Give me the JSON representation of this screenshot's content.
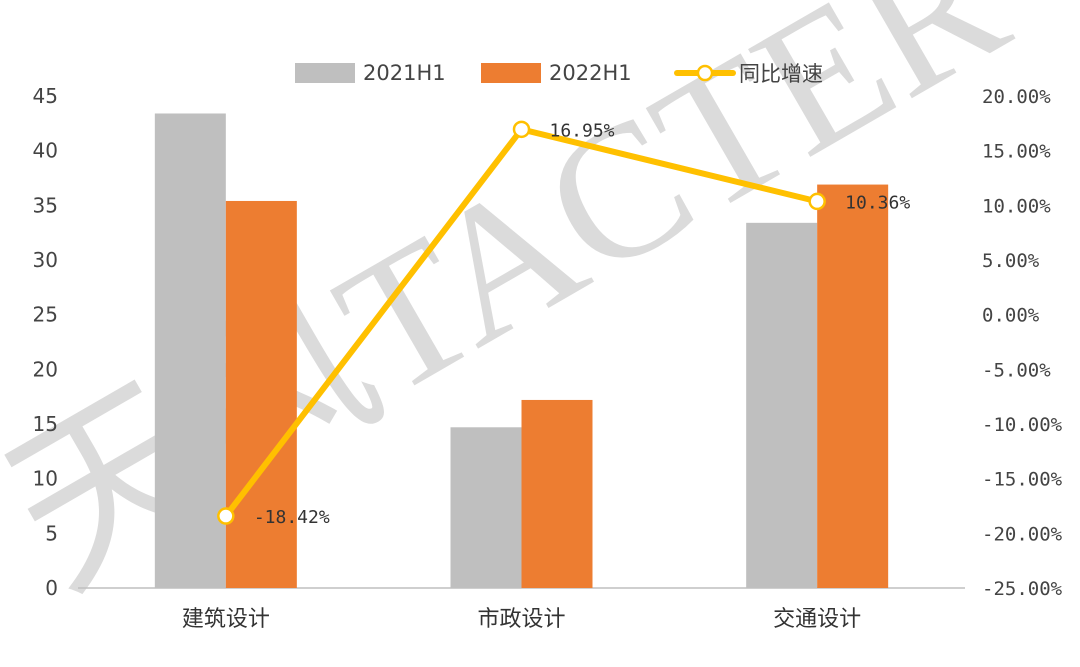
{
  "chart_data": {
    "type": "bar",
    "categories": [
      "建筑设计",
      "市政设计",
      "交通设计"
    ],
    "series": [
      {
        "name": "2021H1",
        "kind": "bar",
        "axis": "left",
        "color": "#bfbfbf",
        "values": [
          43.4,
          14.7,
          33.4
        ]
      },
      {
        "name": "2022H1",
        "kind": "bar",
        "axis": "left",
        "color": "#ed7d31",
        "values": [
          35.4,
          17.2,
          36.9
        ]
      },
      {
        "name": "同比增速",
        "kind": "line",
        "axis": "right",
        "color": "#ffc000",
        "values": [
          -18.42,
          16.95,
          10.36
        ],
        "labels": [
          "-18.42%",
          "16.95%",
          "10.36%"
        ]
      }
    ],
    "ylim_left": [
      0,
      45
    ],
    "yticks_left": [
      "0",
      "5",
      "10",
      "15",
      "20",
      "25",
      "30",
      "35",
      "40",
      "45"
    ],
    "ylim_right": [
      -25,
      20
    ],
    "yticks_right": [
      "-25.00%",
      "-20.00%",
      "-15.00%",
      "-10.00%",
      "-5.00%",
      "0.00%",
      "5.00%",
      "10.00%",
      "15.00%",
      "20.00%"
    ],
    "legend_position": "top-center",
    "grid": false,
    "watermark": "天风TACTER"
  }
}
